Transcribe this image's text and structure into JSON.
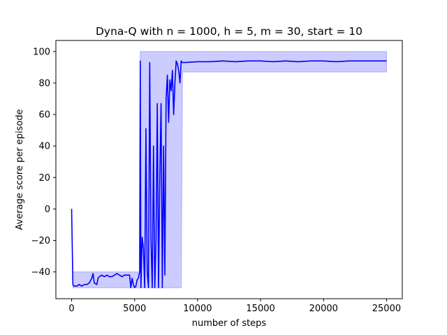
{
  "chart_data": {
    "type": "line",
    "title": "Dyna-Q with n = 1000, h = 5, m = 30, start = 10",
    "xlabel": "number of steps",
    "ylabel": "Average score per episode",
    "xlim": [
      -1250,
      26250
    ],
    "ylim": [
      -57,
      107
    ],
    "xticks": [
      0,
      5000,
      10000,
      15000,
      20000,
      25000
    ],
    "yticks": [
      -40,
      -20,
      0,
      20,
      40,
      60,
      80,
      100
    ],
    "xtick_labels": [
      "0",
      "5000",
      "10000",
      "15000",
      "20000",
      "25000"
    ],
    "ytick_labels": [
      "−40",
      "−20",
      "0",
      "20",
      "40",
      "60",
      "80",
      "100"
    ],
    "grid": false,
    "line_color": "#0000ff",
    "band_fill": "#0000ff",
    "band_opacity": 0.2,
    "series": [
      {
        "x": [
          0,
          100,
          200,
          400,
          600,
          800,
          1000,
          1200,
          1400,
          1600,
          1700,
          1800,
          2000,
          2100,
          2200,
          2400,
          2600,
          2800,
          3000,
          3200,
          3400,
          3600,
          3800,
          4000,
          4200,
          4400,
          4600,
          4700,
          4800,
          4900,
          5000,
          5100,
          5200,
          5300,
          5400,
          5450,
          5500,
          5600,
          5700,
          5800,
          5900,
          6000,
          6100,
          6200,
          6300,
          6400,
          6500,
          6600,
          6700,
          6800,
          6900,
          7000,
          7100,
          7200,
          7300,
          7400,
          7500,
          7600,
          7700,
          7800,
          7900,
          8000,
          8100,
          8200,
          8300,
          8400,
          8500,
          8600,
          8700,
          8800,
          8900,
          9000,
          10000,
          11000,
          12000,
          13000,
          14000,
          15000,
          16000,
          17000,
          18000,
          19000,
          20000,
          21000,
          22000,
          23000,
          24000,
          25000
        ],
        "y": [
          0,
          -48,
          -49,
          -49,
          -48,
          -49,
          -48,
          -48,
          -47,
          -44,
          -41,
          -47,
          -48,
          -44,
          -43,
          -42,
          -43,
          -42,
          -43,
          -43,
          -42,
          -41,
          -42,
          -43,
          -42,
          -42,
          -42,
          -50,
          -44,
          -48,
          -50,
          -49,
          -45,
          -44,
          -40,
          94,
          -50,
          -18,
          -25,
          -50,
          51,
          -40,
          -50,
          93,
          -20,
          -50,
          40,
          -50,
          -20,
          67,
          -50,
          20,
          67,
          -50,
          40,
          -42,
          70,
          85,
          55,
          82,
          75,
          88,
          60,
          80,
          94,
          92,
          88,
          80,
          94,
          93,
          93,
          93,
          93.5,
          93.5,
          94,
          93.5,
          94,
          94,
          93.5,
          94,
          93.5,
          94,
          94,
          93.5,
          94,
          94,
          94,
          94
        ],
        "upper": [
          0,
          -40,
          -40,
          -40,
          -40,
          -40,
          -40,
          -40,
          -40,
          -40,
          -40,
          -40,
          -40,
          -40,
          -40,
          -40,
          -40,
          -40,
          -40,
          -40,
          -40,
          -40,
          -40,
          -40,
          -40,
          -40,
          -40,
          -40,
          -40,
          -40,
          -40,
          -40,
          -40,
          -40,
          -40,
          100,
          100,
          100,
          100,
          100,
          100,
          100,
          100,
          100,
          100,
          100,
          100,
          100,
          100,
          100,
          100,
          100,
          100,
          100,
          100,
          100,
          100,
          100,
          100,
          100,
          100,
          100,
          100,
          100,
          100,
          100,
          100,
          100,
          100,
          100,
          100,
          100,
          100,
          100,
          100,
          100,
          100,
          100,
          100,
          100,
          100,
          100,
          100,
          100,
          100,
          100,
          100,
          100
        ],
        "lower": [
          0,
          -50,
          -50,
          -50,
          -50,
          -50,
          -50,
          -50,
          -50,
          -50,
          -50,
          -50,
          -50,
          -50,
          -50,
          -50,
          -50,
          -50,
          -50,
          -50,
          -50,
          -50,
          -50,
          -50,
          -50,
          -50,
          -50,
          -50,
          -50,
          -50,
          -50,
          -50,
          -50,
          -50,
          -50,
          -50,
          -50,
          -50,
          -50,
          -50,
          -50,
          -50,
          -50,
          -50,
          -50,
          -50,
          -50,
          -50,
          -50,
          -50,
          -50,
          -50,
          -50,
          -50,
          -50,
          -50,
          -50,
          -50,
          -50,
          -50,
          -50,
          -50,
          -50,
          -50,
          -50,
          -50,
          -50,
          -50,
          -50,
          87,
          87,
          87,
          87,
          87,
          87,
          87,
          87,
          87,
          87,
          87,
          87,
          87,
          87,
          87,
          87,
          87,
          87,
          87
        ]
      }
    ]
  }
}
